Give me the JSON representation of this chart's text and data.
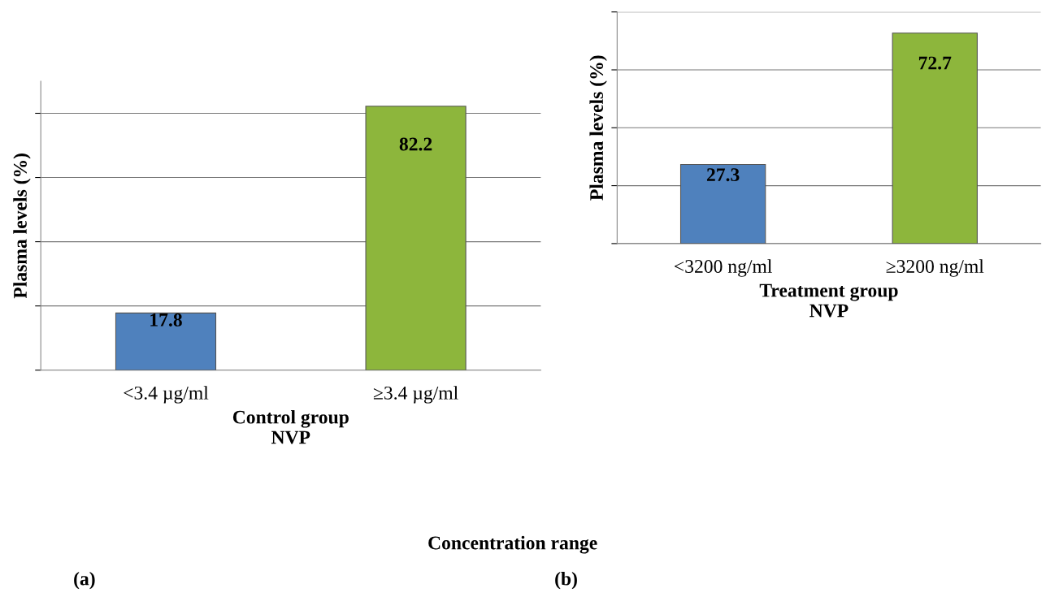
{
  "chart_data": [
    {
      "type": "bar",
      "title": "(a)",
      "xlabel": "Control group\nNVP",
      "ylabel": "Plasma levels (%)",
      "categories": [
        "<3.4 µg/ml",
        "≥3.4 µg/ml"
      ],
      "values": [
        17.8,
        82.2
      ],
      "colors": [
        "#4f81bd",
        "#8db63c"
      ],
      "data_labels": true,
      "ylim": [
        0,
        90
      ],
      "yticks": [
        {
          "value": 0,
          "label": null
        },
        {
          "value": 20,
          "label": null
        },
        {
          "value": 40,
          "label": null
        },
        {
          "value": 60,
          "label": null
        },
        {
          "value": 80,
          "label": null
        }
      ],
      "grid": "y",
      "tick_labels": "x",
      "annotations": [
        "Concentration range"
      ]
    },
    {
      "type": "bar",
      "title": "(b)",
      "xlabel": "Treatment group\nNVP",
      "ylabel": "Plasma levels (%)",
      "categories": [
        "<3200 ng/ml",
        "≥3200 ng/ml"
      ],
      "values": [
        27.3,
        72.7
      ],
      "colors": [
        "#4f81bd",
        "#8db63c"
      ],
      "data_labels": true,
      "ylim": [
        0,
        80
      ],
      "yticks": [
        {
          "value": 0,
          "label": null
        },
        {
          "value": 20,
          "label": null
        },
        {
          "value": 40,
          "label": null
        },
        {
          "value": 60,
          "label": null
        },
        {
          "value": 80,
          "label": null
        }
      ],
      "grid": "y",
      "tick_labels": "x"
    }
  ]
}
